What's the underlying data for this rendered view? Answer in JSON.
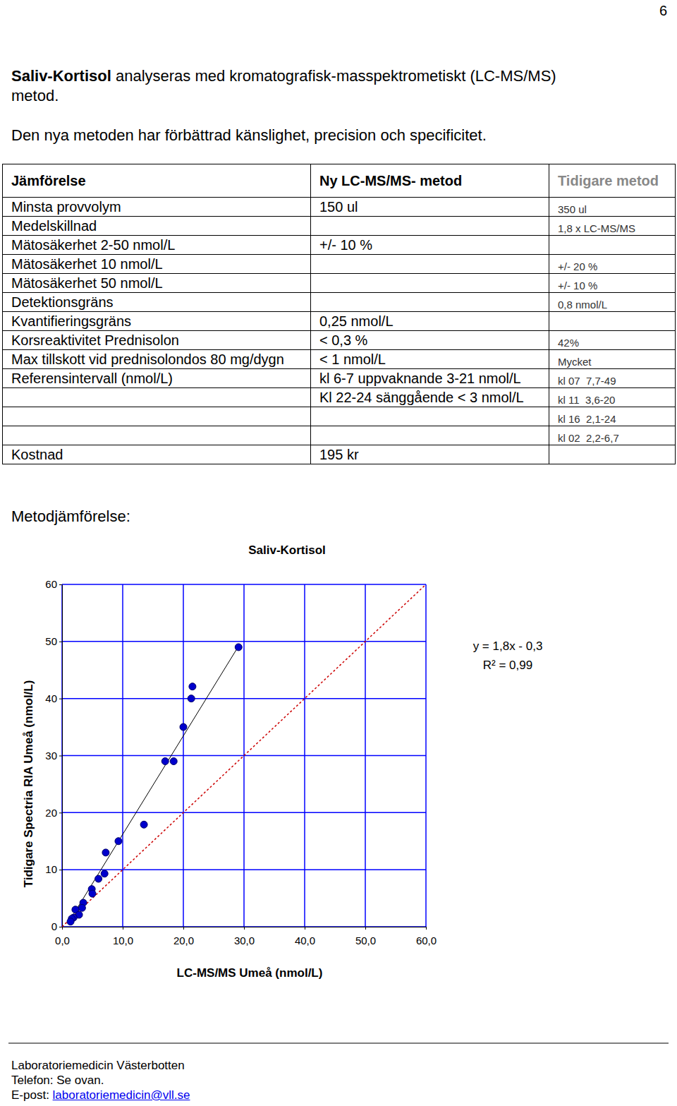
{
  "page_number": "6",
  "intro": {
    "bold": "Saliv-Kortisol",
    "line1": " analyseras med kromatografisk-masspektrometiskt (LC-MS/MS)",
    "line2": "metod.",
    "line3": "Den nya metoden har förbättrad känslighet, precision och specificitet."
  },
  "table": {
    "header": [
      "Jämförelse",
      "Ny LC-MS/MS- metod",
      "Tidigare metod"
    ],
    "rows": [
      [
        "Minsta provvolym",
        "150 ul",
        "350 ul"
      ],
      [
        "Medelskillnad",
        null,
        "1,8 x LC-MS/MS"
      ],
      [
        "Mätosäkerhet 2-50 nmol/L",
        "+/- 10 %",
        null
      ],
      [
        "Mätosäkerhet 10 nmol/L",
        null,
        "+/- 20 %"
      ],
      [
        "Mätosäkerhet 50 nmol/L",
        null,
        "+/- 10 %"
      ],
      [
        "Detektionsgräns",
        null,
        "0,8 nmol/L"
      ],
      [
        "Kvantifieringsgräns",
        "0,25 nmol/L",
        null
      ],
      [
        "Korsreaktivitet Prednisolon",
        "< 0,3 %",
        "42%"
      ],
      [
        "Max tillskott vid prednisolondos 80 mg/dygn",
        "< 1 nmol/L",
        "Mycket"
      ],
      [
        "Referensintervall (nmol/L)",
        "kl 6-7 uppvaknande 3-21 nmol/L",
        "kl 07  7,7-49"
      ],
      [
        null,
        "Kl 22-24 sänggående < 3 nmol/L",
        "kl 11  3,6-20"
      ],
      [
        null,
        null,
        "kl 16  2,1-24"
      ],
      [
        null,
        null,
        "kl 02  2,2-6,7"
      ],
      [
        "Kostnad",
        "195 kr",
        null
      ]
    ]
  },
  "section_title": "Metodjämförelse:",
  "chart_data": {
    "type": "scatter",
    "title": "Saliv-Kortisol",
    "xlabel": "LC-MS/MS Umeå (nmol/L)",
    "ylabel": "Tidigare Spectria RIA Umeå (nmol/L)",
    "series": [
      {
        "type": "scatter",
        "color": "#0000cc",
        "marker": "circle",
        "x": [
          29.1,
          21.5,
          21.3,
          20.0,
          17.0,
          18.4,
          13.5,
          9.3,
          7.2,
          7.0,
          6.0,
          4.9,
          5.0,
          3.5,
          3.3,
          2.2,
          2.8,
          1.9,
          1.6,
          1.4
        ],
        "values": [
          49.0,
          42.1,
          40.0,
          35.0,
          29.0,
          29.0,
          17.9,
          15.0,
          13.0,
          9.3,
          8.4,
          6.6,
          5.8,
          4.2,
          3.3,
          3.0,
          2.1,
          1.6,
          1.4,
          0.9
        ]
      },
      {
        "type": "line",
        "color": "#000000",
        "line_style": "solid",
        "x": [
          1.2,
          29.0
        ],
        "values": [
          1.0,
          49.0
        ]
      },
      {
        "type": "line",
        "color": "#cc0000",
        "line_style": "dashed",
        "x": [
          0,
          60
        ],
        "values": [
          0,
          60
        ]
      }
    ],
    "xlim": [
      0,
      60
    ],
    "ylim": [
      0,
      60
    ],
    "xticks": [
      {
        "value": 0,
        "label": "0,0"
      },
      {
        "value": 10,
        "label": "10,0"
      },
      {
        "value": 20,
        "label": "20,0"
      },
      {
        "value": 30,
        "label": "30,0"
      },
      {
        "value": 40,
        "label": "40,0"
      },
      {
        "value": 50,
        "label": "50,0"
      },
      {
        "value": 60,
        "label": "60,0"
      }
    ],
    "yticks": [
      0,
      10,
      20,
      30,
      40,
      50,
      60
    ],
    "grid": true,
    "annotations": [
      "y = 1,8x - 0,3",
      "R² = 0,99"
    ]
  },
  "footer": {
    "lines": [
      "Laboratoriemedicin Västerbotten",
      "Telefon: Se ovan."
    ],
    "email_label": "E-post: ",
    "email": "laboratoriemedicin@vll.se"
  }
}
